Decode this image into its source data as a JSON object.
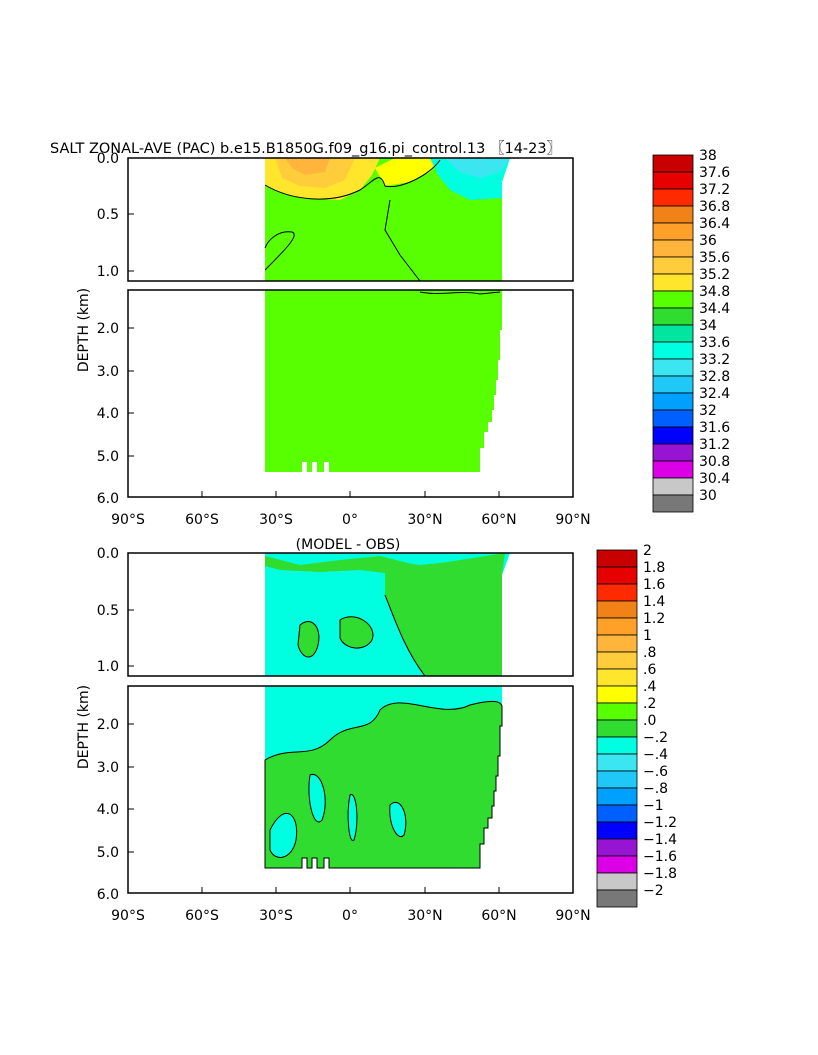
{
  "title": "SALT ZONAL-AVE (PAC) b.e15.B1850G.f09_g16.pi_control.13 〖14-23〗",
  "chart_data": [
    {
      "type": "heatmap",
      "title": "SALT ZONAL-AVE (PAC) b.e15.B1850G.f09_g16.pi_control.13 〖14-23〗",
      "ylabel": "DEPTH (km)",
      "xlim": [
        -90,
        90
      ],
      "ylim_top_panel": [
        0,
        1.1
      ],
      "ylim_bottom_panel": [
        1.1,
        6.0
      ],
      "x_ticks": [
        "90°S",
        "60°S",
        "30°S",
        "0°",
        "30°N",
        "60°N",
        "90°N"
      ],
      "y_ticks_top": [
        "0.0",
        "0.5",
        "1.0"
      ],
      "y_ticks_bottom": [
        "2.0",
        "3.0",
        "4.0",
        "5.0",
        "6.0"
      ],
      "colorbar_levels": [
        "38",
        "37.6",
        "37.2",
        "36.8",
        "36.4",
        "36",
        "35.6",
        "35.2",
        "34.8",
        "34.4",
        "34",
        "33.6",
        "33.2",
        "32.8",
        "32.4",
        "32",
        "31.6",
        "31.2",
        "30.8",
        "30.4",
        "30"
      ],
      "colorbar_colors": [
        "#c80000",
        "#e60000",
        "#ff2a00",
        "#f08218",
        "#ffa028",
        "#ffb43c",
        "#ffcc3c",
        "#ffe62d",
        "#58ff00",
        "#31dc31",
        "#00e6a0",
        "#00ffe1",
        "#3ce6f0",
        "#20c8f8",
        "#00a0ff",
        "#0060ff",
        "#0000ff",
        "#9614d2",
        "#dc00e6",
        "#c8c8c8",
        "#787878"
      ]
    },
    {
      "type": "heatmap",
      "title": "(MODEL - OBS)",
      "ylabel": "DEPTH (km)",
      "xlim": [
        -90,
        90
      ],
      "ylim_top_panel": [
        0,
        1.1
      ],
      "ylim_bottom_panel": [
        1.1,
        6.0
      ],
      "x_ticks": [
        "90°S",
        "60°S",
        "30°S",
        "0°",
        "30°N",
        "60°N",
        "90°N"
      ],
      "y_ticks_top": [
        "0.0",
        "0.5",
        "1.0"
      ],
      "y_ticks_bottom": [
        "2.0",
        "3.0",
        "4.0",
        "5.0",
        "6.0"
      ],
      "colorbar_levels": [
        "2",
        "1.8",
        "1.6",
        "1.4",
        "1.2",
        "1",
        ".8",
        ".6",
        ".4",
        ".2",
        ".0",
        "−.2",
        "−.4",
        "−.6",
        "−.8",
        "−1",
        "−1.2",
        "−1.4",
        "−1.6",
        "−1.8",
        "−2"
      ],
      "colorbar_colors": [
        "#c80000",
        "#e60000",
        "#ff2a00",
        "#f08218",
        "#ffa028",
        "#ffb43c",
        "#ffcc3c",
        "#ffe62d",
        "#ffff00",
        "#58ff00",
        "#31dc31",
        "#00ffe1",
        "#3ce6f0",
        "#20c8f8",
        "#00a0ff",
        "#0060ff",
        "#0000ff",
        "#9614d2",
        "#dc00e6",
        "#c8c8c8",
        "#787878"
      ]
    }
  ],
  "colors": {
    "field_top": "#58ff00",
    "field_bottom_top": "#00ffe1",
    "field_bottom_bottom": "#31dc31",
    "accent_yellow": "#ffff00",
    "accent_orange": "#ffb43c",
    "accent_cyan": "#00ffe1"
  }
}
